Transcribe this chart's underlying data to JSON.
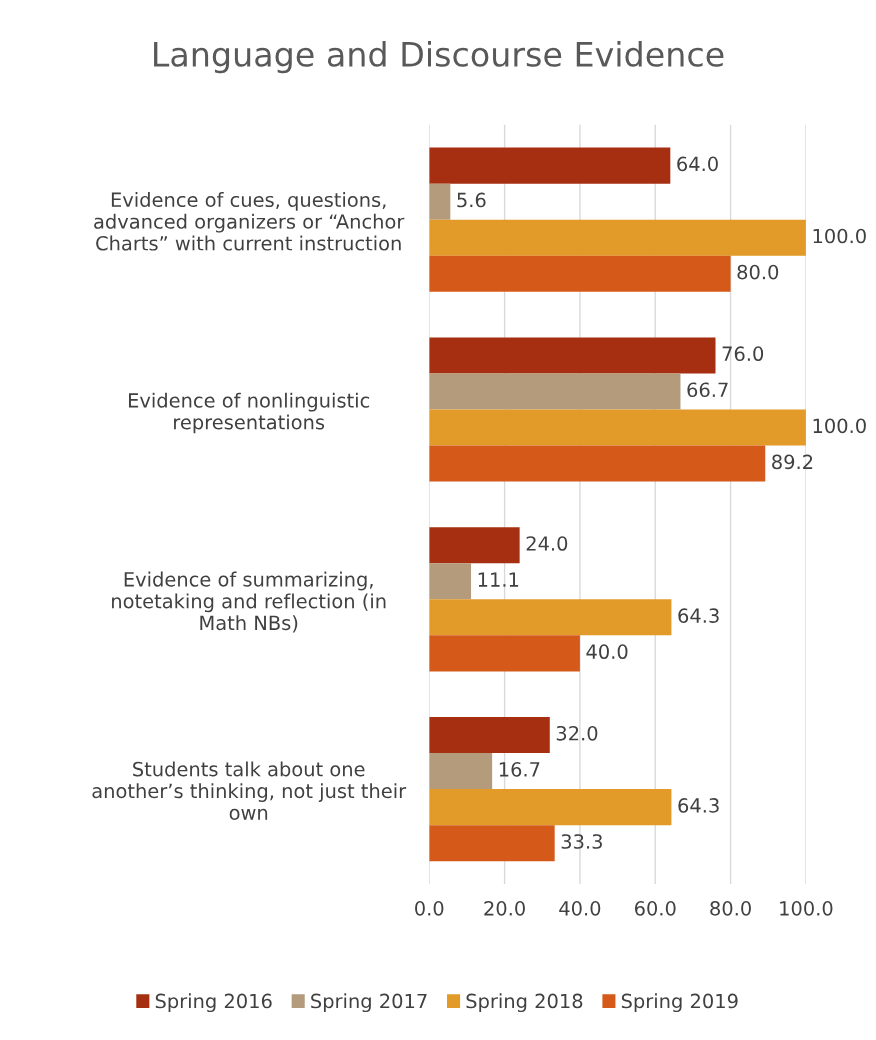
{
  "chart_data": {
    "type": "bar",
    "orientation": "horizontal",
    "title": "Language and Discourse Evidence",
    "categories": [
      "Evidence of cues, questions,\nadvanced organizers or “Anchor\nCharts” with current instruction",
      "Evidence of nonlinguistic\nrepresentations",
      "Evidence of summarizing,\nnotetaking and reflection (in\nMath NBs)",
      "Students talk about one\nanother’s thinking, not just their\nown"
    ],
    "series": [
      {
        "name": "Spring 2016",
        "color": "#a52f10",
        "values": [
          64.0,
          76.0,
          24.0,
          32.0
        ],
        "value_labels": [
          "64.0",
          "76.0",
          "24.0",
          "32.0"
        ]
      },
      {
        "name": "Spring 2017",
        "color": "#b39b7c",
        "values": [
          5.6,
          66.7,
          11.1,
          16.7
        ],
        "value_labels": [
          "5.6",
          "66.7",
          "11.1",
          "16.7"
        ]
      },
      {
        "name": "Spring 2018",
        "color": "#e29a28",
        "values": [
          100.0,
          100.0,
          64.3,
          64.3
        ],
        "value_labels": [
          "100.0",
          "100.0",
          "64.3",
          "64.3"
        ]
      },
      {
        "name": "Spring 2019",
        "color": "#d55a1a",
        "values": [
          80.0,
          89.2,
          40.0,
          33.3
        ],
        "value_labels": [
          "80.0",
          "89.2",
          "40.0",
          "33.3"
        ]
      }
    ],
    "xlim": [
      0,
      100
    ],
    "xticks": [
      {
        "value": 0,
        "label": "0.0"
      },
      {
        "value": 20,
        "label": "20.0"
      },
      {
        "value": 40,
        "label": "40.0"
      },
      {
        "value": 60,
        "label": "60.0"
      },
      {
        "value": 80,
        "label": "80.0"
      },
      {
        "value": 100,
        "label": "100.0"
      }
    ],
    "grid": "x",
    "legend": "bottom"
  }
}
